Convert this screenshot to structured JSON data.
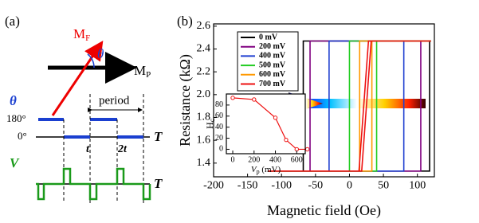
{
  "panel_a": {
    "label": "(a)",
    "mf": {
      "main": "M",
      "sub": "F"
    },
    "theta": "θ",
    "mp": {
      "main": "M",
      "sub": "P"
    },
    "theta_axis": "θ",
    "level_high": "180°",
    "level_low": "0°",
    "period": "period",
    "t1": "t",
    "t2": "2t",
    "time_1": "T",
    "v_axis": "V",
    "time_2": "T"
  },
  "chart_data": [
    {
      "type": "line",
      "panel_label": "(b)",
      "x_label": "Magnetic field (Oe)",
      "y_label": "Resistance (kΩ)",
      "xlim": [
        -200,
        125
      ],
      "ylim": [
        1.28,
        2.62
      ],
      "xticks": [
        -200,
        -150,
        -100,
        -50,
        0,
        50,
        100
      ],
      "yticks": [
        1.4,
        1.6,
        1.8,
        {
          "value": 2,
          "label": "2.0"
        },
        2.2,
        2.4,
        2.6
      ],
      "legend": "upper left",
      "series": [
        {
          "name": "0 mV",
          "color": "#000000",
          "x": [
            -120,
            118,
            118,
            120,
            -68,
            -68,
            -120
          ],
          "values": [
            1.33,
            1.33,
            2.47,
            2.47,
            2.47,
            1.33,
            1.33
          ]
        },
        {
          "name": "200 mV",
          "color": "#800080",
          "x": [
            -120,
            105,
            105,
            120,
            -58,
            -58,
            -120
          ],
          "values": [
            1.33,
            1.33,
            2.47,
            2.47,
            2.47,
            1.33,
            1.33
          ]
        },
        {
          "name": "400 mV",
          "color": "#1f3fd0",
          "x": [
            -120,
            80,
            80,
            120,
            -30,
            -30,
            -120
          ],
          "values": [
            1.33,
            1.33,
            2.47,
            2.47,
            2.47,
            1.33,
            1.33
          ]
        },
        {
          "name": "500 mV",
          "color": "#22cc22",
          "x": [
            -120,
            40,
            40,
            120,
            0,
            0,
            -120
          ],
          "values": [
            1.33,
            1.33,
            2.47,
            2.47,
            2.47,
            1.33,
            1.33
          ]
        },
        {
          "name": "600 mV",
          "color": "#ff9900",
          "x": [
            -120,
            33,
            33,
            120,
            15,
            15,
            -120
          ],
          "values": [
            1.33,
            1.33,
            2.47,
            2.47,
            2.47,
            1.33,
            1.33
          ]
        },
        {
          "name": "700 mV",
          "color": "#ee1111",
          "x": [
            -120,
            18,
            32,
            120,
            28,
            14,
            -120
          ],
          "values": [
            1.33,
            1.33,
            2.47,
            2.47,
            2.47,
            1.33,
            1.33
          ]
        }
      ]
    },
    {
      "type": "line",
      "markers": true,
      "x_label": {
        "main": "V",
        "sub": "p",
        "rest": " (mV)"
      },
      "y_label": {
        "main": "H",
        "sub": "c"
      },
      "xlim": [
        -60,
        680
      ],
      "ylim": [
        -8,
        100
      ],
      "xticks": [
        0,
        200,
        400,
        600
      ],
      "yticks": [
        0,
        20,
        40,
        60,
        80
      ],
      "series": [
        {
          "color": "#ee1111",
          "x": [
            0,
            200,
            400,
            500,
            600,
            700
          ],
          "values": [
            93,
            90,
            57,
            17,
            0,
            0
          ]
        }
      ]
    }
  ]
}
